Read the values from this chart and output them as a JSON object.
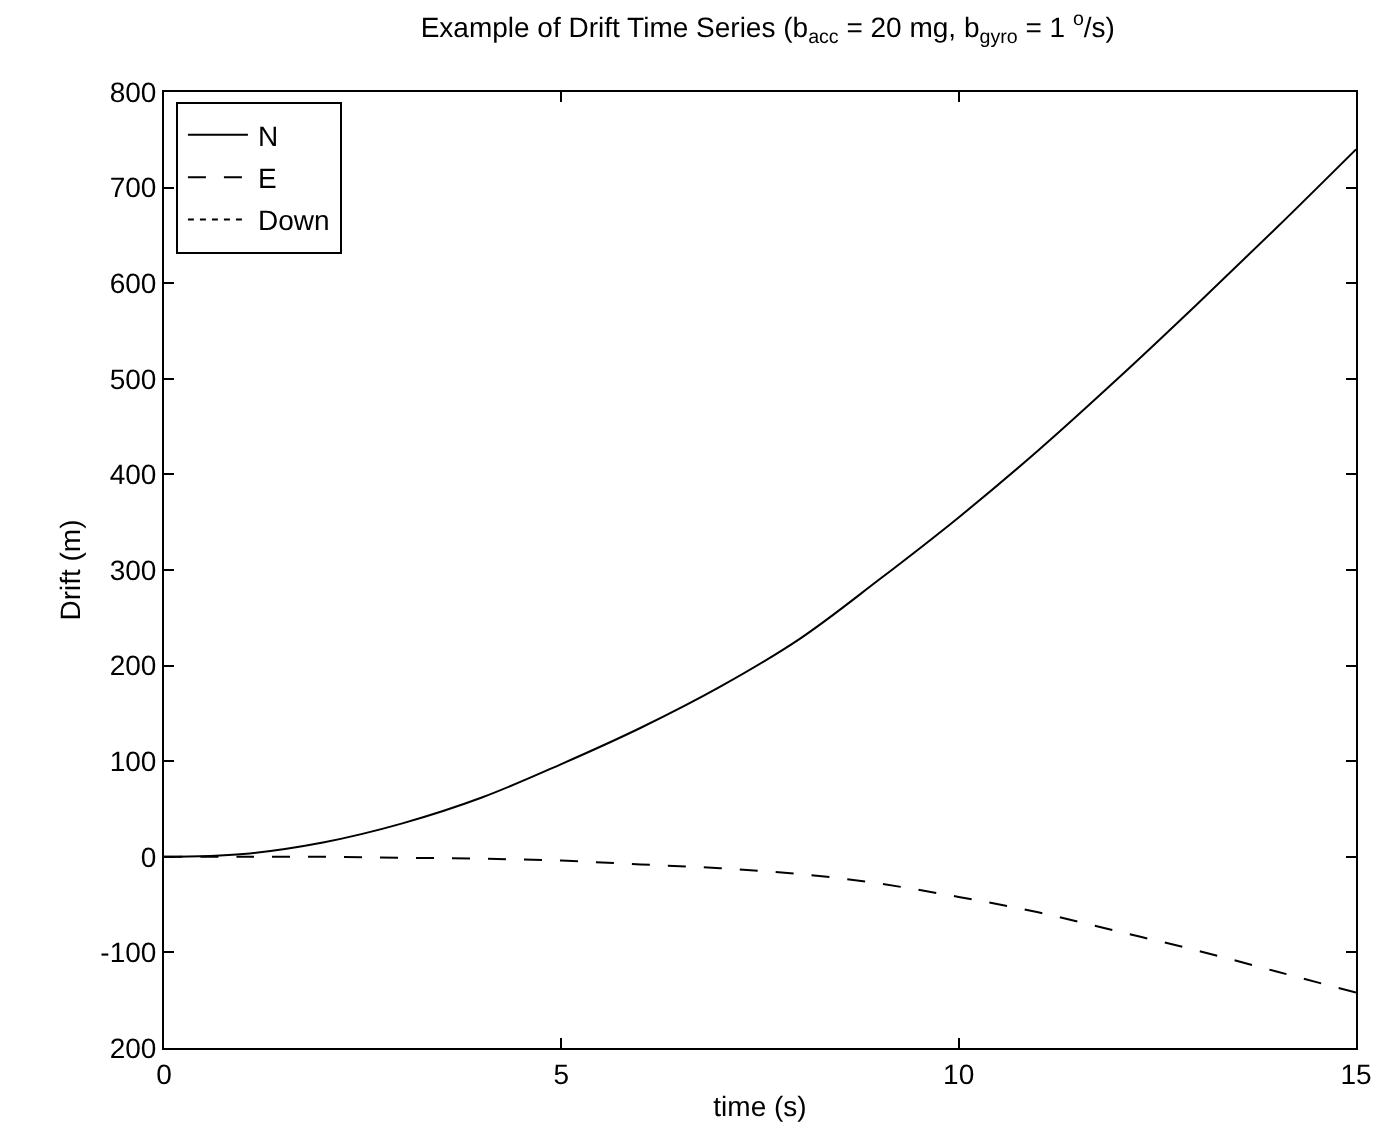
{
  "chart_data": {
    "type": "line",
    "title": "Example of Drift Time Series (b$_{acc}$ = 20 mg, b$_{gyro}$ = 1 $^{o}$/s)",
    "xlabel": "time (s)",
    "ylabel": "Drift (m)",
    "x": [
      0,
      1,
      2,
      3,
      4,
      5,
      6,
      7,
      8,
      9,
      10,
      11,
      12,
      13,
      14,
      15
    ],
    "series": [
      {
        "name": "N",
        "color": "#000000",
        "line_style": "solid",
        "values": [
          0,
          3,
          15,
          35,
          62,
          97,
          135,
          178,
          228,
          290,
          355,
          425,
          500,
          578,
          658,
          740
        ]
      },
      {
        "name": "E",
        "color": "#000000",
        "line_style": "dashed",
        "values": [
          0,
          0,
          0,
          -1,
          -2,
          -4,
          -8,
          -12,
          -18,
          -28,
          -42,
          -58,
          -78,
          -98,
          -120,
          -142
        ]
      },
      {
        "name": "Down",
        "color": "#000000",
        "line_style": "dotted",
        "values": [
          null,
          null,
          null,
          null,
          null,
          null,
          null,
          null,
          null,
          null,
          null,
          null,
          null,
          null,
          null,
          null
        ]
      }
    ],
    "xlim": [
      0,
      15
    ],
    "xticks": [
      0,
      5,
      10,
      15
    ],
    "ylim": [
      -200,
      800
    ],
    "yticks": [
      {
        "value": -200,
        "label": "200"
      },
      -100,
      0,
      100,
      200,
      300,
      400,
      500,
      600,
      700,
      800
    ],
    "legend": "top left",
    "marker": "none"
  }
}
